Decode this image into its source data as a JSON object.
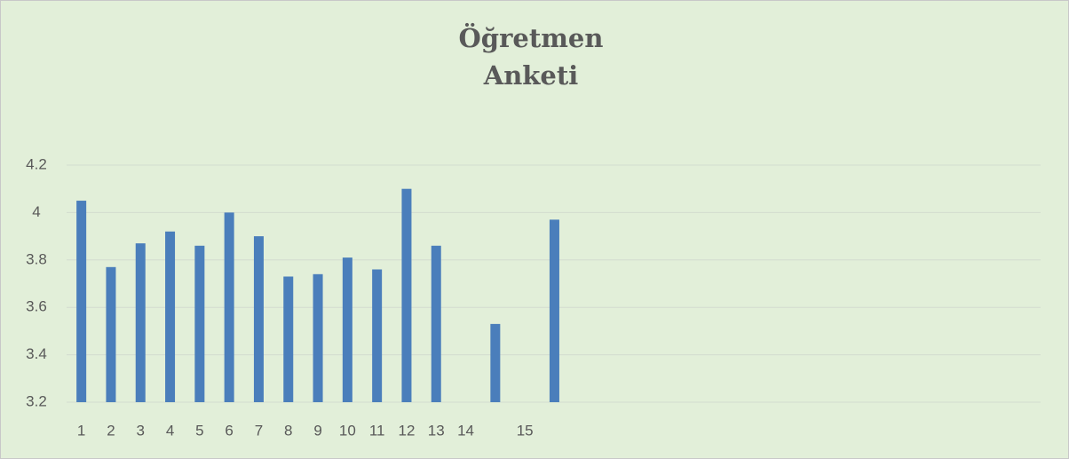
{
  "chart_data": {
    "type": "bar",
    "title": "Öğretmen Anketi",
    "categories": [
      "1",
      "2",
      "3",
      "4",
      "5",
      "6",
      "7",
      "8",
      "9",
      "10",
      "11",
      "12",
      "13",
      "14",
      null,
      "15",
      null
    ],
    "values": [
      4.05,
      3.77,
      3.87,
      3.92,
      3.86,
      4.0,
      3.9,
      3.73,
      3.74,
      3.81,
      3.76,
      4.1,
      3.86,
      null,
      3.53,
      null,
      3.97
    ],
    "color": "#4a7ebb",
    "ylim": [
      3.2,
      4.2
    ],
    "yticks": [
      3.2,
      3.4,
      3.6,
      3.8,
      4,
      4.2
    ],
    "grid": true
  }
}
